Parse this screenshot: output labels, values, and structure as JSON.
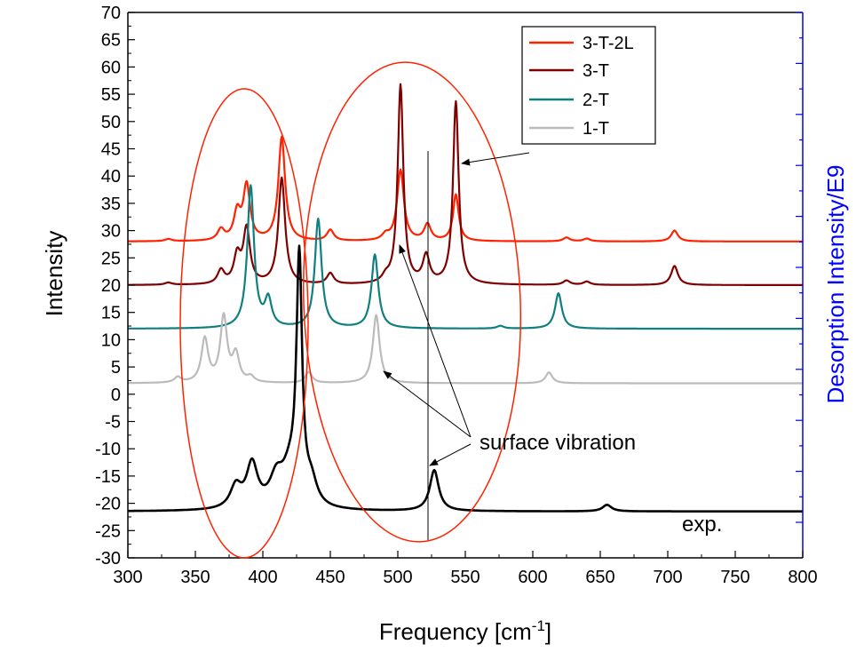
{
  "chart_data": {
    "type": "line",
    "xlabel": "Frequency [cm",
    "xlabel_sup": "-1",
    "xlabel_end": "]",
    "ylabel": "Intensity",
    "y2label": "Desorption Intensity/E9",
    "xlim": [
      300,
      800
    ],
    "ylim": [
      -30,
      70
    ],
    "xticks": [
      300,
      350,
      400,
      450,
      500,
      550,
      600,
      650,
      700,
      750,
      800
    ],
    "yticks": [
      -30,
      -25,
      -20,
      -15,
      -10,
      -5,
      0,
      5,
      10,
      15,
      20,
      25,
      30,
      35,
      40,
      45,
      50,
      55,
      60,
      65,
      70
    ],
    "grid": false,
    "legend_position": "top-right",
    "x_range": [
      300,
      800
    ],
    "series": [
      {
        "name": "3-T-2L",
        "color": "#ff2200",
        "baseline": 28,
        "peaks": [
          [
            330,
            0.4,
            3
          ],
          [
            369,
            2,
            3
          ],
          [
            381,
            5,
            3
          ],
          [
            388,
            10,
            3
          ],
          [
            414,
            19,
            3
          ],
          [
            450,
            2,
            3
          ],
          [
            491,
            1,
            3
          ],
          [
            502,
            13,
            3
          ],
          [
            522,
            3,
            3
          ],
          [
            543,
            8.5,
            2.5
          ],
          [
            625,
            0.7,
            3
          ],
          [
            640,
            0.5,
            3
          ],
          [
            705,
            2,
            3
          ]
        ]
      },
      {
        "name": "3-T",
        "color": "#800000",
        "baseline": 20,
        "peaks": [
          [
            330,
            0.4,
            3
          ],
          [
            369,
            2.5,
            3
          ],
          [
            381,
            5,
            3
          ],
          [
            388,
            10,
            3
          ],
          [
            414,
            19.5,
            3
          ],
          [
            450,
            2,
            3
          ],
          [
            491,
            1,
            3
          ],
          [
            502,
            36.5,
            2.5
          ],
          [
            521,
            5,
            3
          ],
          [
            543,
            33.5,
            2.5
          ],
          [
            625,
            0.8,
            3
          ],
          [
            640,
            0.6,
            3
          ],
          [
            705,
            3.5,
            3
          ]
        ]
      },
      {
        "name": "2-T",
        "color": "#107f7f",
        "baseline": 12,
        "peaks": [
          [
            391,
            26,
            3
          ],
          [
            404,
            5,
            3
          ],
          [
            441,
            20,
            3
          ],
          [
            483,
            13.5,
            3
          ],
          [
            576,
            0.5,
            3
          ],
          [
            619,
            6.5,
            3
          ]
        ]
      },
      {
        "name": "1-T",
        "color": "#bbbbbb",
        "baseline": 2,
        "peaks": [
          [
            337,
            1,
            3
          ],
          [
            357,
            8,
            3
          ],
          [
            371,
            12,
            3
          ],
          [
            380,
            5,
            3
          ],
          [
            391,
            1,
            3
          ],
          [
            434,
            2,
            3
          ],
          [
            484,
            12.5,
            3
          ],
          [
            612,
            2,
            3
          ]
        ]
      },
      {
        "name": "exp.",
        "color": "#000000",
        "baseline": -21.5,
        "peaks": [
          [
            380,
            4,
            5
          ],
          [
            392,
            8,
            5
          ],
          [
            410,
            5,
            6
          ],
          [
            420,
            6,
            7
          ],
          [
            427,
            44,
            2.5
          ],
          [
            436,
            4,
            5
          ],
          [
            527,
            7.5,
            4
          ],
          [
            655,
            1.2,
            4
          ]
        ]
      }
    ]
  },
  "legend": {
    "items": [
      {
        "name": "3-T-2L",
        "color": "#ff2200"
      },
      {
        "name": "3-T",
        "color": "#800000"
      },
      {
        "name": "2-T",
        "color": "#107f7f"
      },
      {
        "name": "1-T",
        "color": "#bbbbbb"
      }
    ]
  },
  "annotations": {
    "surface_vibration": "surface vibration",
    "exp_label": "exp."
  },
  "colors": {
    "right_axis": "#0000ff",
    "ellipse": "#ff2200"
  }
}
